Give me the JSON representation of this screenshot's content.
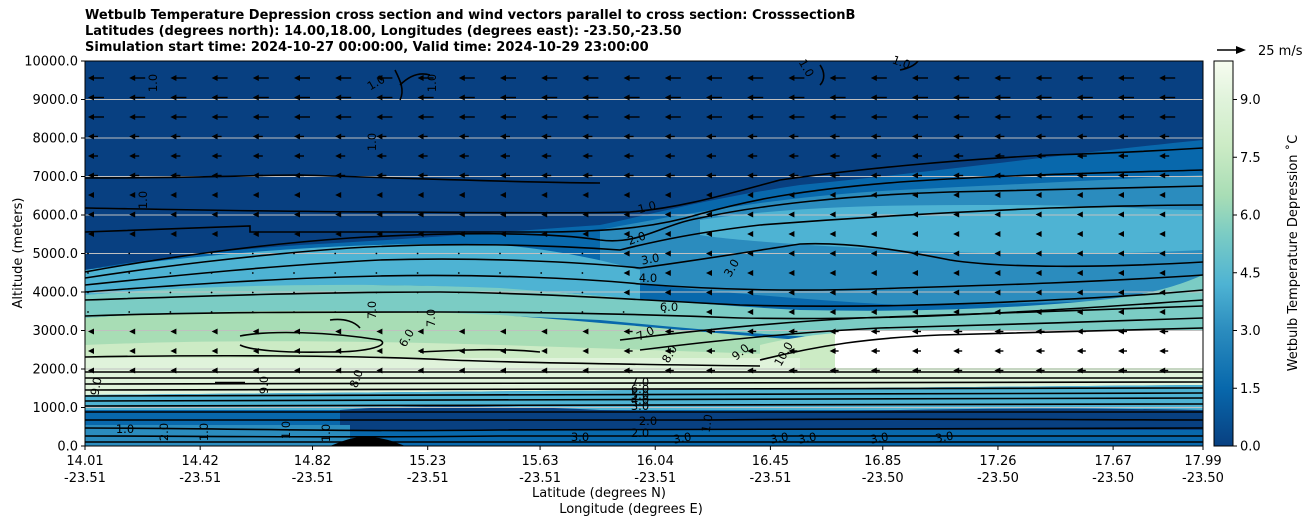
{
  "chart_data": {
    "type": "contour",
    "title_lines": [
      "Wetbulb Temperature Depression cross section and wind vectors parallel to cross section: CrosssectionB",
      "Latitudes (degrees north): 14.00,18.00, Longitudes (degrees east): -23.50,-23.50",
      "Simulation start time: 2024-10-27 00:00:00, Valid time: 2024-10-29 23:00:00"
    ],
    "ylabel": "Altitude (meters)",
    "xlabel_lat": "Latitude (degrees N)",
    "xlabel_lon": "Longitude (degrees E)",
    "ylim": [
      0,
      10000
    ],
    "yticks": [
      "0.0",
      "1000.0",
      "2000.0",
      "3000.0",
      "4000.0",
      "5000.0",
      "6000.0",
      "7000.0",
      "8000.0",
      "9000.0",
      "10000.0"
    ],
    "xticks_lat": [
      "14.01",
      "14.42",
      "14.82",
      "15.23",
      "15.63",
      "16.04",
      "16.45",
      "16.85",
      "17.26",
      "17.67",
      "17.99"
    ],
    "xticks_lon": [
      "-23.51",
      "-23.51",
      "-23.51",
      "-23.51",
      "-23.51",
      "-23.51",
      "-23.51",
      "-23.50",
      "-23.50",
      "-23.50",
      "-23.50"
    ],
    "colorbar_label": "Wetbulb Temperature Depression $^\\circ$C",
    "colorbar_label_display": "Wetbulb Temperature Depression ˚C",
    "colorbar_ticks": [
      "0.0",
      "1.5",
      "3.0",
      "4.5",
      "6.0",
      "7.5",
      "9.0"
    ],
    "colorbar_range": [
      0,
      10
    ],
    "quiver_key": "25 m/s",
    "contour_labels": [
      "1.0",
      "1.0",
      "1.0",
      "1.0",
      "1.0",
      "1.0",
      "1.0",
      "1.0",
      "2.0",
      "3.0",
      "3.0",
      "4.0",
      "6.0",
      "7.0",
      "7.0",
      "6.0",
      "7.0",
      "8.0",
      "9.0",
      "10.0",
      "8.0",
      "9.0",
      "9.0",
      "7.0",
      "6.0",
      "5.0",
      "4.0",
      "3.0",
      "2.0",
      "1.0",
      "2.0",
      "3.0",
      "3.0",
      "3.0",
      "3.0",
      "3.0",
      "3.0",
      "2.0",
      "1.0",
      "1.0",
      "1.0",
      "1.0"
    ],
    "colors": {
      "cmap": [
        "#084081",
        "#0868ac",
        "#2b8cbe",
        "#4eb3d3",
        "#7bccc4",
        "#a8ddb5",
        "#ccebc5",
        "#e0f3db",
        "#f7fcf0"
      ],
      "grid": "#c0c0c0",
      "contour": "#000000"
    }
  }
}
